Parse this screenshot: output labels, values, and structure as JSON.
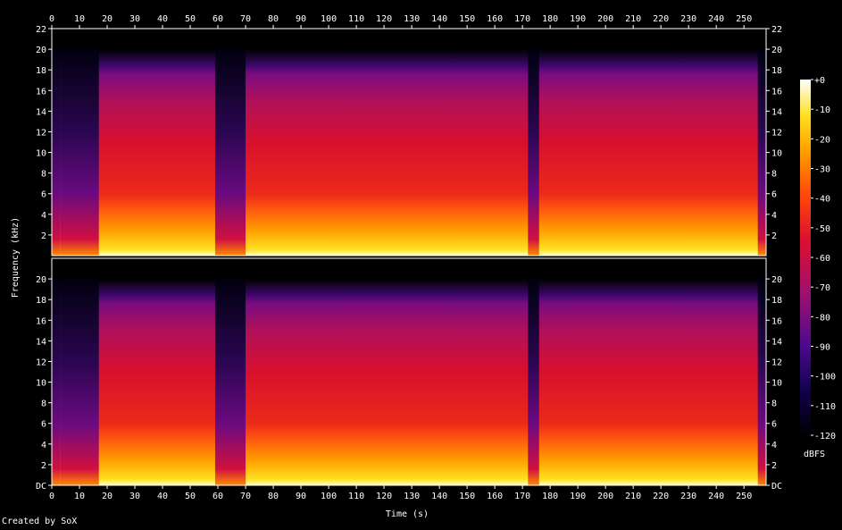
{
  "chart_data": {
    "type": "heatmap",
    "title": "",
    "xlabel": "Time (s)",
    "ylabel": "Frequency (kHz)",
    "xlim": [
      0,
      258
    ],
    "ylim": [
      0,
      22
    ],
    "x_ticks": [
      "0",
      "10",
      "20",
      "30",
      "40",
      "50",
      "60",
      "70",
      "80",
      "90",
      "100",
      "110",
      "120",
      "130",
      "140",
      "150",
      "160",
      "170",
      "180",
      "190",
      "200",
      "210",
      "220",
      "230",
      "240",
      "250"
    ],
    "y_ticks_top": [
      "2",
      "4",
      "6",
      "8",
      "10",
      "12",
      "14",
      "16",
      "18",
      "20",
      "22"
    ],
    "y_ticks_bottom": [
      "DC",
      "2",
      "4",
      "6",
      "8",
      "10",
      "12",
      "14",
      "16",
      "18",
      "20"
    ],
    "channels": [
      {
        "name": "",
        "freq_cutoff_khz": 20
      },
      {
        "name": "",
        "freq_cutoff_khz": 20
      }
    ],
    "colorbar": {
      "label": "dBFS",
      "range": [
        -120,
        0
      ],
      "ticks": [
        "+0",
        "-10",
        "-20",
        "-30",
        "-40",
        "-50",
        "-60",
        "-70",
        "-80",
        "-90",
        "-100",
        "-110",
        "-120"
      ]
    },
    "quiet_segments_s": [
      [
        0,
        3
      ],
      [
        3,
        17
      ],
      [
        59,
        70
      ],
      [
        172,
        176
      ],
      [
        255,
        258
      ]
    ],
    "palette": [
      "#000000",
      "#1a0040",
      "#5a0a8c",
      "#a0106e",
      "#d8102a",
      "#f03a08",
      "#ff8a00",
      "#ffd800",
      "#ffffa0",
      "#ffffff"
    ]
  },
  "footer": {
    "credit": "Created by SoX"
  }
}
